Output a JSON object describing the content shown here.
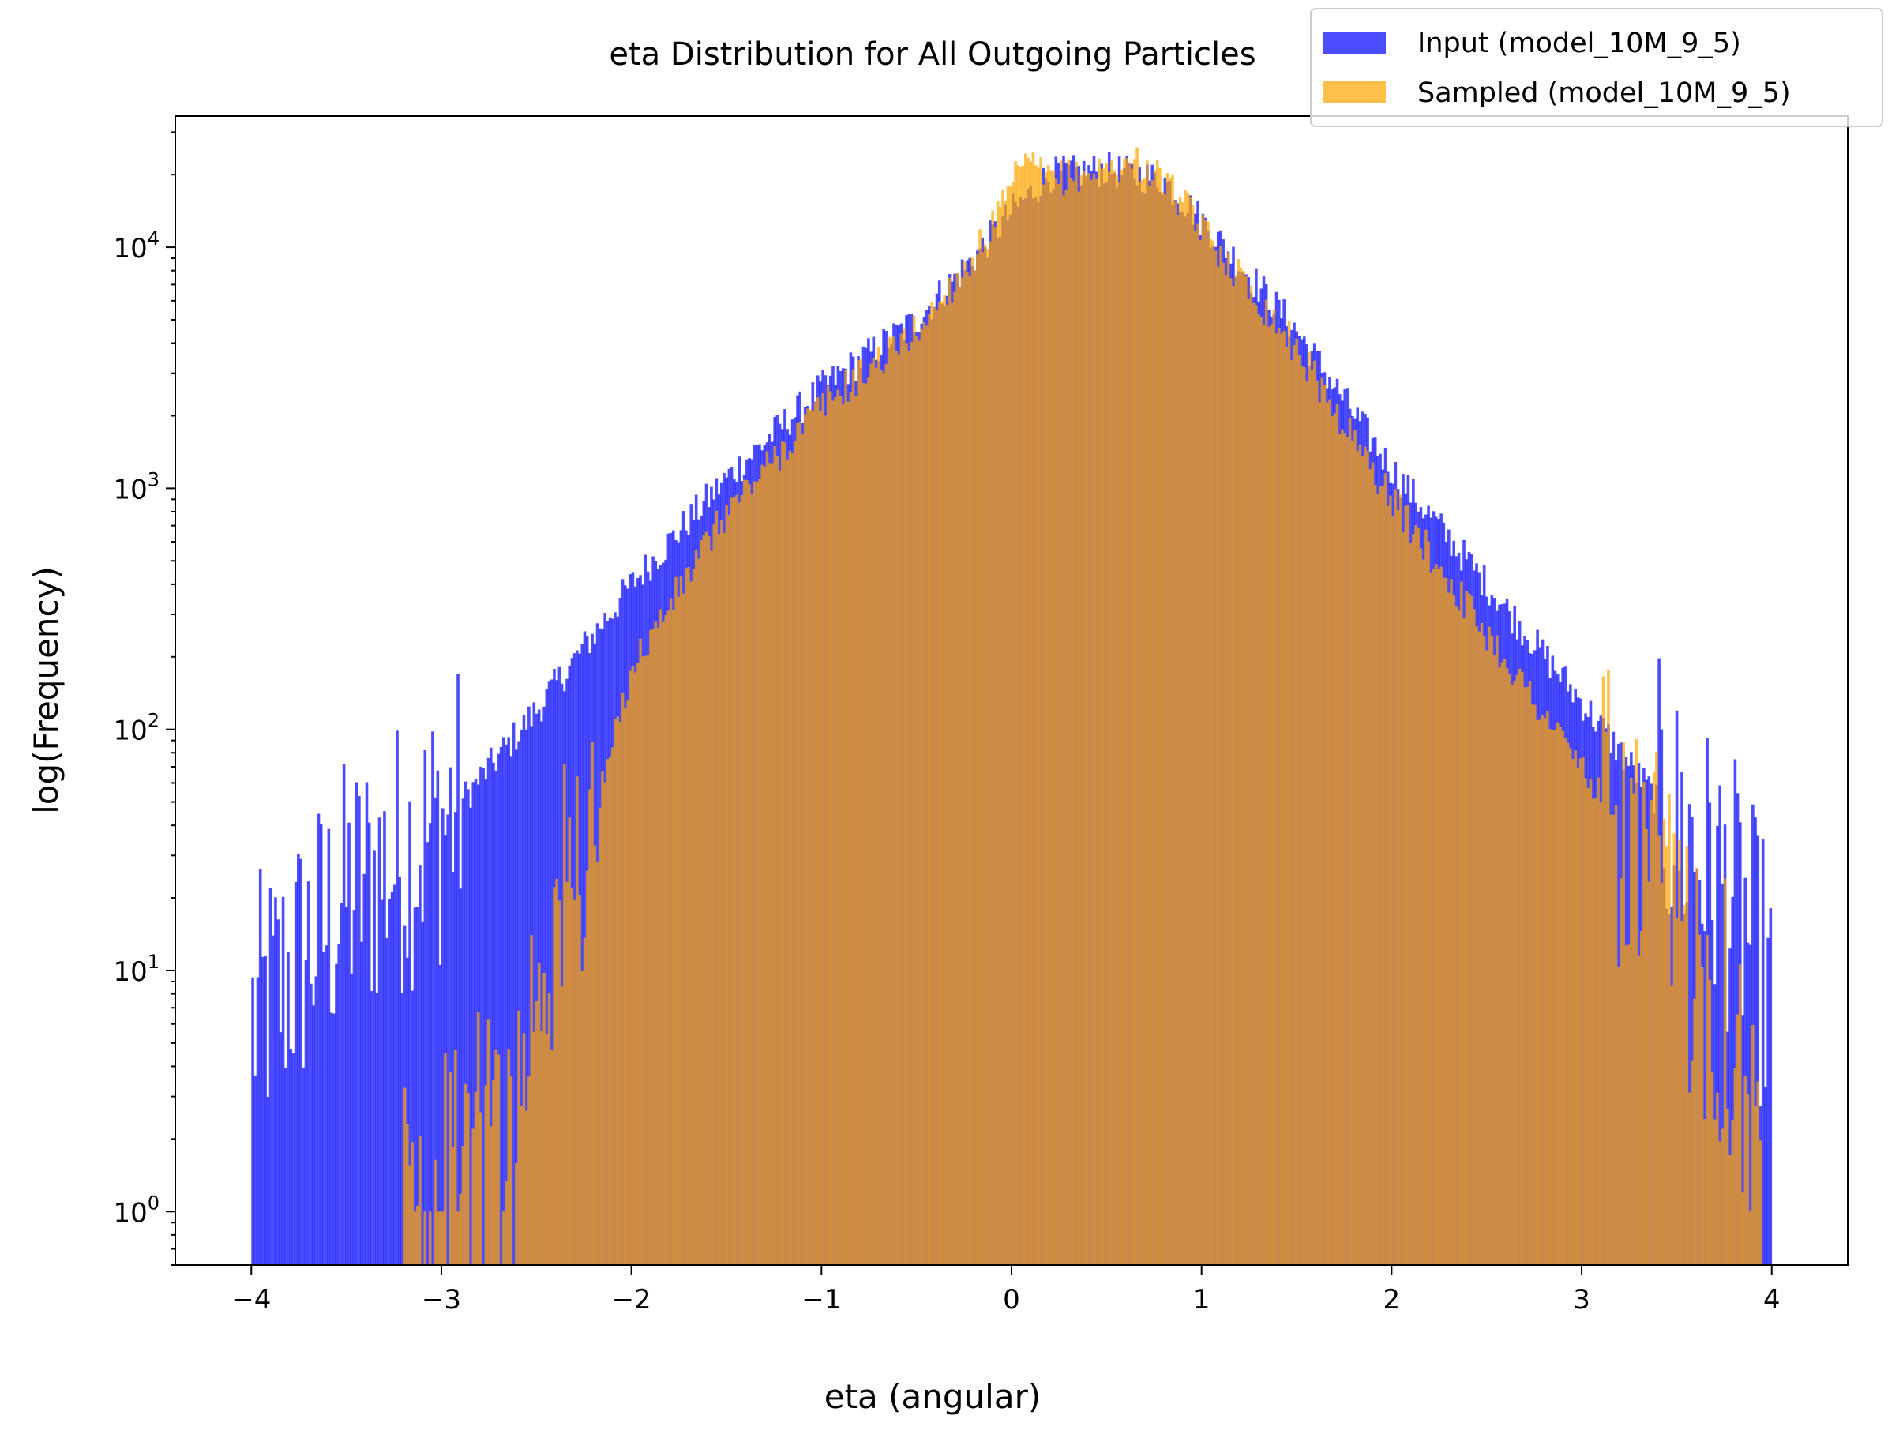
{
  "chart_data": {
    "type": "bar",
    "title": "eta Distribution for All Outgoing Particles",
    "xlabel": "eta (angular)",
    "ylabel": "log(Frequency)",
    "xlim": [
      -4.4,
      4.4
    ],
    "ylim": [
      0.6,
      35000
    ],
    "yscale": "log",
    "grid": false,
    "legend_position": "top-right",
    "x_ticks": [
      -4,
      -3,
      -2,
      -1,
      0,
      1,
      2,
      3,
      4
    ],
    "x_tick_labels": [
      "−4",
      "−3",
      "−2",
      "−1",
      "0",
      "1",
      "2",
      "3",
      "4"
    ],
    "y_ticks": [
      1,
      10,
      100,
      1000,
      10000
    ],
    "y_tick_labels": [
      {
        "base": "10",
        "exp": "0"
      },
      {
        "base": "10",
        "exp": "1"
      },
      {
        "base": "10",
        "exp": "2"
      },
      {
        "base": "10",
        "exp": "3"
      },
      {
        "base": "10",
        "exp": "4"
      }
    ],
    "series": [
      {
        "name": "Input (model_10M_9_5)",
        "color": "#0000ff",
        "opacity": 0.7,
        "range": [
          -4.0,
          4.0
        ],
        "curve": [
          [
            -4.0,
            6
          ],
          [
            -3.5,
            20
          ],
          [
            -3.0,
            40
          ],
          [
            -2.5,
            120
          ],
          [
            -2.0,
            400
          ],
          [
            -1.5,
            1100
          ],
          [
            -1.0,
            2600
          ],
          [
            -0.5,
            5000
          ],
          [
            -0.2,
            9000
          ],
          [
            0.0,
            14000
          ],
          [
            0.2,
            20000
          ],
          [
            0.5,
            21000
          ],
          [
            0.8,
            19000
          ],
          [
            1.0,
            13000
          ],
          [
            1.5,
            4500
          ],
          [
            2.0,
            1200
          ],
          [
            2.5,
            400
          ],
          [
            3.0,
            130
          ],
          [
            3.5,
            40
          ],
          [
            3.8,
            20
          ],
          [
            4.0,
            8
          ]
        ]
      },
      {
        "name": "Sampled (model_10M_9_5)",
        "color": "#ffa500",
        "opacity": 0.7,
        "range": [
          -3.2,
          3.95
        ],
        "curve": [
          [
            -3.15,
            1
          ],
          [
            -2.6,
            3
          ],
          [
            -2.5,
            10
          ],
          [
            -2.2,
            40
          ],
          [
            -2.0,
            180
          ],
          [
            -1.5,
            800
          ],
          [
            -1.0,
            2200
          ],
          [
            -0.5,
            4500
          ],
          [
            -0.2,
            9000
          ],
          [
            0.0,
            17000
          ],
          [
            0.05,
            23000
          ],
          [
            0.2,
            19000
          ],
          [
            0.5,
            21000
          ],
          [
            0.65,
            22500
          ],
          [
            0.8,
            19000
          ],
          [
            1.0,
            12000
          ],
          [
            1.5,
            3800
          ],
          [
            2.0,
            900
          ],
          [
            2.5,
            250
          ],
          [
            3.0,
            70
          ],
          [
            3.5,
            15
          ],
          [
            3.8,
            6
          ],
          [
            3.95,
            1
          ]
        ]
      }
    ]
  }
}
